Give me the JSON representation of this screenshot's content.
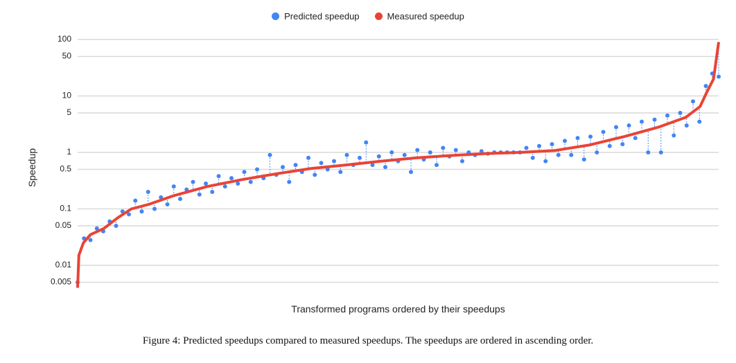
{
  "chart_data": {
    "type": "scatter",
    "title": "",
    "xlabel": "Transformed programs ordered by their speedups",
    "ylabel": "Speedup",
    "yscale": "log",
    "ylim": [
      0.004,
      100
    ],
    "xlim": [
      0,
      100
    ],
    "yticks": [
      100,
      50,
      10,
      5,
      1,
      0.5,
      0.1,
      0.05,
      0.01,
      0.005
    ],
    "ytick_labels": [
      "100",
      "50",
      "10",
      "5",
      "1",
      "0.5",
      "0.1",
      "0.05",
      "0.01",
      "0.005"
    ],
    "grid": true,
    "legend_position": "top",
    "series": [
      {
        "name": "Predicted speedup",
        "color": "#4285f4",
        "kind": "points",
        "values": [
          0.005,
          0.03,
          0.028,
          0.045,
          0.04,
          0.06,
          0.05,
          0.09,
          0.08,
          0.14,
          0.09,
          0.2,
          0.1,
          0.16,
          0.12,
          0.25,
          0.15,
          0.22,
          0.3,
          0.18,
          0.28,
          0.2,
          0.38,
          0.25,
          0.35,
          0.28,
          0.45,
          0.3,
          0.5,
          0.35,
          0.9,
          0.4,
          0.55,
          0.3,
          0.6,
          0.45,
          0.8,
          0.4,
          0.65,
          0.5,
          0.7,
          0.45,
          0.9,
          0.6,
          0.8,
          1.5,
          0.6,
          0.85,
          0.55,
          1.0,
          0.7,
          0.9,
          0.45,
          1.1,
          0.75,
          1.0,
          0.6,
          1.2,
          0.85,
          1.1,
          0.7,
          1.0,
          0.9,
          1.05,
          0.95,
          1.0,
          1.0,
          1.0,
          1.0,
          1.0,
          1.2,
          0.8,
          1.3,
          0.7,
          1.4,
          0.9,
          1.6,
          0.9,
          1.8,
          0.75,
          1.9,
          1.0,
          2.3,
          1.3,
          2.8,
          1.4,
          3.0,
          1.8,
          3.5,
          1.0,
          3.8,
          1.0,
          4.5,
          2.0,
          5.0,
          3.0,
          8,
          3.5,
          15,
          25,
          22
        ]
      },
      {
        "name": "Measured speedup",
        "color": "#ea4335",
        "kind": "line",
        "points": [
          [
            0,
            0.004
          ],
          [
            0.2,
            0.015
          ],
          [
            0.9,
            0.025
          ],
          [
            2,
            0.035
          ],
          [
            4.1,
            0.045
          ],
          [
            6.3,
            0.07
          ],
          [
            8.4,
            0.1
          ],
          [
            11.1,
            0.12
          ],
          [
            14.9,
            0.17
          ],
          [
            20.3,
            0.25
          ],
          [
            25.7,
            0.33
          ],
          [
            31.1,
            0.42
          ],
          [
            36.5,
            0.52
          ],
          [
            41.9,
            0.6
          ],
          [
            47.4,
            0.7
          ],
          [
            52.8,
            0.8
          ],
          [
            58.2,
            0.88
          ],
          [
            63.6,
            0.95
          ],
          [
            69,
            1.0
          ],
          [
            74.4,
            1.08
          ],
          [
            79.8,
            1.35
          ],
          [
            85.2,
            1.9
          ],
          [
            90.6,
            2.8
          ],
          [
            94.9,
            4.2
          ],
          [
            97.1,
            6.5
          ],
          [
            98.2,
            12
          ],
          [
            99.2,
            20
          ],
          [
            100,
            90
          ]
        ]
      }
    ]
  },
  "caption": "Figure 4: Predicted speedups compared to measured speedups. The speedups are ordered in ascending order."
}
